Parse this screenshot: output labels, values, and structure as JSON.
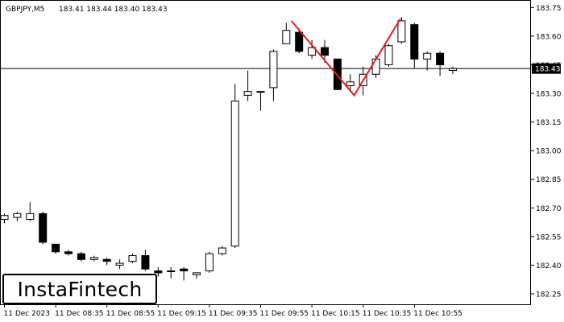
{
  "header": {
    "symbol": "GBPJPY,M5",
    "ohlc": "183.41 183.44 183.40 183.43"
  },
  "logo_text": "InstaFintech",
  "colors": {
    "background": "#ffffff",
    "candle_border": "#000000",
    "bull_fill": "#ffffff",
    "bear_fill": "#000000",
    "pattern_line": "#e41e1e",
    "price_line": "#000000"
  },
  "chart_data": {
    "type": "candlestick",
    "title": "",
    "xlabel": "",
    "ylabel": "",
    "ylim": [
      182.195,
      183.785
    ],
    "y_ticks": [
      "183.75",
      "183.60",
      "183.45",
      "183.30",
      "183.15",
      "183.00",
      "182.85",
      "182.70",
      "182.55",
      "182.40",
      "182.25"
    ],
    "x_ticks": [
      {
        "index": 0,
        "label": "11 Dec 2023"
      },
      {
        "index": 4,
        "label": "11 Dec 08:35"
      },
      {
        "index": 8,
        "label": "11 Dec 08:55"
      },
      {
        "index": 12,
        "label": "11 Dec 09:15"
      },
      {
        "index": 16,
        "label": "11 Dec 09:35"
      },
      {
        "index": 20,
        "label": "11 Dec 09:55"
      },
      {
        "index": 24,
        "label": "11 Dec 10:15"
      },
      {
        "index": 28,
        "label": "11 Dec 10:35"
      },
      {
        "index": 32,
        "label": "11 Dec 10:55"
      }
    ],
    "current_price": "183.43",
    "candles": [
      {
        "o": 182.64,
        "h": 182.67,
        "l": 182.62,
        "c": 182.66
      },
      {
        "o": 182.65,
        "h": 182.68,
        "l": 182.63,
        "c": 182.67
      },
      {
        "o": 182.64,
        "h": 182.73,
        "l": 182.63,
        "c": 182.67
      },
      {
        "o": 182.67,
        "h": 182.68,
        "l": 182.51,
        "c": 182.52
      },
      {
        "o": 182.51,
        "h": 182.51,
        "l": 182.46,
        "c": 182.47
      },
      {
        "o": 182.47,
        "h": 182.48,
        "l": 182.45,
        "c": 182.46
      },
      {
        "o": 182.46,
        "h": 182.47,
        "l": 182.42,
        "c": 182.43
      },
      {
        "o": 182.43,
        "h": 182.45,
        "l": 182.42,
        "c": 182.44
      },
      {
        "o": 182.43,
        "h": 182.44,
        "l": 182.4,
        "c": 182.42
      },
      {
        "o": 182.4,
        "h": 182.43,
        "l": 182.38,
        "c": 182.41
      },
      {
        "o": 182.42,
        "h": 182.46,
        "l": 182.41,
        "c": 182.45
      },
      {
        "o": 182.45,
        "h": 182.48,
        "l": 182.37,
        "c": 182.38
      },
      {
        "o": 182.37,
        "h": 182.39,
        "l": 182.34,
        "c": 182.36
      },
      {
        "o": 182.37,
        "h": 182.39,
        "l": 182.33,
        "c": 182.37
      },
      {
        "o": 182.38,
        "h": 182.39,
        "l": 182.32,
        "c": 182.37
      },
      {
        "o": 182.35,
        "h": 182.36,
        "l": 182.33,
        "c": 182.36
      },
      {
        "o": 182.37,
        "h": 182.47,
        "l": 182.36,
        "c": 182.46
      },
      {
        "o": 182.46,
        "h": 182.5,
        "l": 182.45,
        "c": 182.49
      },
      {
        "o": 182.5,
        "h": 183.35,
        "l": 182.49,
        "c": 183.26
      },
      {
        "o": 183.29,
        "h": 183.42,
        "l": 183.26,
        "c": 183.31
      },
      {
        "o": 183.31,
        "h": 183.31,
        "l": 183.21,
        "c": 183.31
      },
      {
        "o": 183.33,
        "h": 183.53,
        "l": 183.26,
        "c": 183.52
      },
      {
        "o": 183.56,
        "h": 183.67,
        "l": 183.56,
        "c": 183.63
      },
      {
        "o": 183.62,
        "h": 183.64,
        "l": 183.51,
        "c": 183.52
      },
      {
        "o": 183.5,
        "h": 183.58,
        "l": 183.48,
        "c": 183.54
      },
      {
        "o": 183.54,
        "h": 183.58,
        "l": 183.46,
        "c": 183.5
      },
      {
        "o": 183.48,
        "h": 183.48,
        "l": 183.32,
        "c": 183.32
      },
      {
        "o": 183.34,
        "h": 183.4,
        "l": 183.31,
        "c": 183.36
      },
      {
        "o": 183.34,
        "h": 183.44,
        "l": 183.29,
        "c": 183.4
      },
      {
        "o": 183.4,
        "h": 183.5,
        "l": 183.38,
        "c": 183.48
      },
      {
        "o": 183.45,
        "h": 183.56,
        "l": 183.44,
        "c": 183.55
      },
      {
        "o": 183.57,
        "h": 183.7,
        "l": 183.56,
        "c": 183.68
      },
      {
        "o": 183.66,
        "h": 183.67,
        "l": 183.43,
        "c": 183.48
      },
      {
        "o": 183.48,
        "h": 183.52,
        "l": 183.42,
        "c": 183.51
      },
      {
        "o": 183.51,
        "h": 183.52,
        "l": 183.39,
        "c": 183.45
      },
      {
        "o": 183.42,
        "h": 183.44,
        "l": 183.4,
        "c": 183.43
      }
    ],
    "pattern": {
      "name": "",
      "points": [
        {
          "index": 22.4,
          "price": 183.68
        },
        {
          "index": 27.3,
          "price": 183.29
        },
        {
          "index": 30.9,
          "price": 183.69
        }
      ]
    }
  }
}
